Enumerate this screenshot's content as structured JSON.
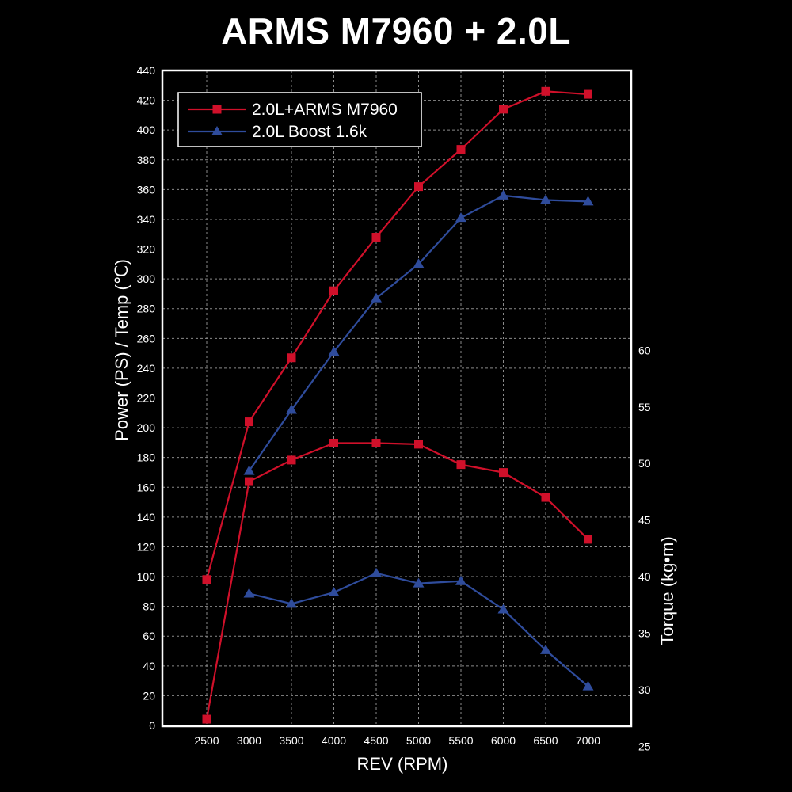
{
  "chart_data": {
    "type": "line",
    "title": "ARMS M7960 + 2.0L",
    "xlabel": "REV (RPM)",
    "ylabel_left": "Power (PS) / Temp (℃)",
    "ylabel_right": "Torque (kg•m)",
    "x": [
      2500,
      3000,
      3500,
      4000,
      4500,
      5000,
      5500,
      6000,
      6500,
      7000
    ],
    "xlim": [
      2000,
      7500
    ],
    "ylim_left": [
      0,
      440
    ],
    "ylim_right": [
      25,
      60
    ],
    "yticks_left": [
      0,
      20,
      40,
      60,
      80,
      100,
      120,
      140,
      160,
      180,
      200,
      220,
      240,
      260,
      280,
      300,
      320,
      340,
      360,
      380,
      400,
      420,
      440
    ],
    "yticks_right": [
      25,
      30,
      35,
      40,
      45,
      50,
      55,
      60
    ],
    "grid": true,
    "legend_position": "top-left",
    "colors": {
      "red": "#d0102a",
      "blue": "#2f4c9c",
      "grid": "#8a8a8a",
      "frame": "#ffffff"
    },
    "series": [
      {
        "name": "2.0L+ARMS M7960",
        "color_key": "red",
        "marker": "square",
        "axis": "left",
        "quantity": "power",
        "values": [
          98,
          204,
          247,
          292,
          328,
          362,
          387,
          414,
          426,
          424
        ]
      },
      {
        "name": "2.0L Boost 1.6k",
        "color_key": "blue",
        "marker": "triangle",
        "axis": "left",
        "quantity": "power",
        "values": [
          null,
          171,
          212,
          251,
          287,
          310,
          341,
          356,
          353,
          352
        ]
      },
      {
        "name": "",
        "color_key": "red",
        "marker": "square",
        "axis": "right",
        "quantity": "torque",
        "values": [
          27.4,
          48.4,
          50.3,
          51.8,
          51.8,
          51.7,
          49.9,
          49.2,
          47.0,
          43.3
        ]
      },
      {
        "name": "",
        "color_key": "blue",
        "marker": "triangle",
        "axis": "right",
        "quantity": "torque",
        "values": [
          null,
          38.5,
          37.6,
          38.6,
          40.3,
          39.4,
          39.6,
          37.1,
          33.5,
          30.3
        ]
      }
    ],
    "legend": [
      {
        "label": "2.0L+ARMS M7960",
        "color_key": "red",
        "marker": "square"
      },
      {
        "label": "2.0L Boost 1.6k",
        "color_key": "blue",
        "marker": "triangle"
      }
    ]
  }
}
